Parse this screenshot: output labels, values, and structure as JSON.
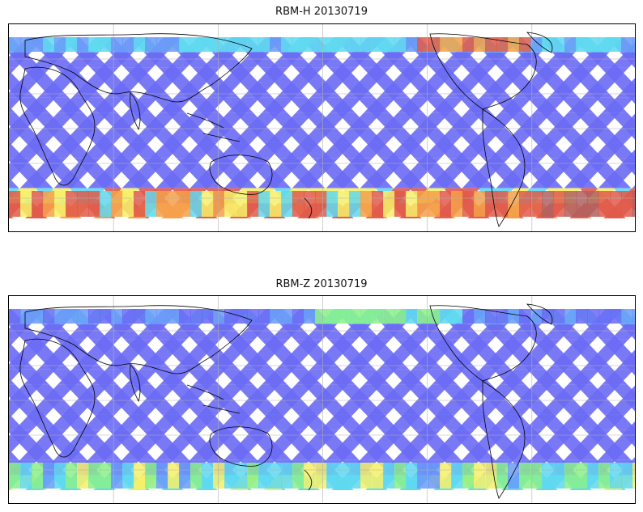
{
  "figure": {
    "panels": [
      {
        "id": "h",
        "title": "RBM-H 20130719",
        "palette": "jet"
      },
      {
        "id": "z",
        "title": "RBM-Z 20130719",
        "palette": "jet"
      }
    ],
    "colors": {
      "low": "#6a6af5",
      "mid": "#5fd8f0",
      "high": "#f6f06a",
      "peak": "#e05a4a",
      "coast": "#000000",
      "grid": "#b0b0b0"
    },
    "map": {
      "projection": "equirectangular",
      "gridlines": true,
      "coastlines": true
    }
  }
}
